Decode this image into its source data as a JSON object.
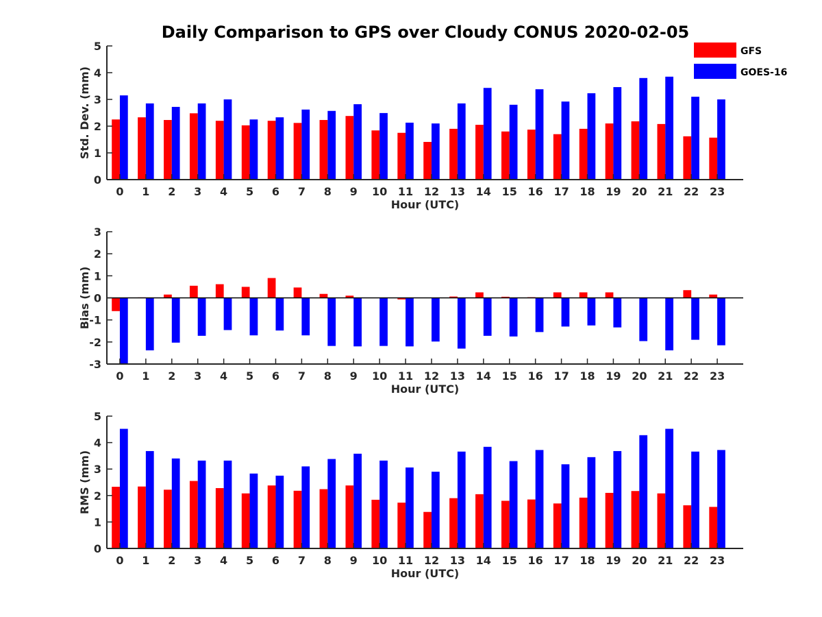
{
  "title": "Daily Comparison to GPS over Cloudy CONUS 2020-02-05",
  "colors": {
    "GFS": "#ff0000",
    "GOES-16": "#0000ff",
    "axis": "#262626"
  },
  "legend": {
    "placement": "top-right",
    "entries": [
      "GFS",
      "GOES-16"
    ]
  },
  "chart_data": [
    {
      "type": "bar",
      "ylabel": "Std. Dev. (mm)",
      "xlabel": "Hour (UTC)",
      "ylim": [
        0,
        5
      ],
      "yticks": [
        "0",
        "1",
        "2",
        "3",
        "4",
        "5"
      ],
      "categories": [
        "0",
        "1",
        "2",
        "3",
        "4",
        "5",
        "6",
        "7",
        "8",
        "9",
        "10",
        "11",
        "12",
        "13",
        "14",
        "15",
        "16",
        "17",
        "18",
        "19",
        "20",
        "21",
        "22",
        "23"
      ],
      "series": [
        {
          "name": "GFS",
          "values": [
            2.25,
            2.33,
            2.23,
            2.48,
            2.2,
            2.03,
            2.2,
            2.12,
            2.23,
            2.38,
            1.84,
            1.75,
            1.41,
            1.9,
            2.05,
            1.8,
            1.87,
            1.7,
            1.9,
            2.1,
            2.18,
            2.08,
            1.62,
            1.57
          ]
        },
        {
          "name": "GOES-16",
          "values": [
            3.15,
            2.85,
            2.72,
            2.85,
            3.0,
            2.25,
            2.33,
            2.62,
            2.57,
            2.82,
            2.49,
            2.13,
            2.1,
            2.85,
            3.43,
            2.8,
            3.38,
            2.92,
            3.23,
            3.46,
            3.8,
            3.85,
            3.1,
            3.0
          ]
        }
      ]
    },
    {
      "type": "bar",
      "ylabel": "Bias (mm)",
      "xlabel": "Hour (UTC)",
      "ylim": [
        -3,
        3
      ],
      "yticks": [
        "-3",
        "-2",
        "-1",
        "0",
        "1",
        "2",
        "3"
      ],
      "categories": [
        "0",
        "1",
        "2",
        "3",
        "4",
        "5",
        "6",
        "7",
        "8",
        "9",
        "10",
        "11",
        "12",
        "13",
        "14",
        "15",
        "16",
        "17",
        "18",
        "19",
        "20",
        "21",
        "22",
        "23"
      ],
      "series": [
        {
          "name": "GFS",
          "values": [
            -0.6,
            0.02,
            0.15,
            0.55,
            0.62,
            0.5,
            0.9,
            0.47,
            0.18,
            0.1,
            0.0,
            -0.07,
            0.0,
            0.06,
            0.25,
            0.05,
            0.03,
            0.25,
            0.25,
            0.25,
            0.0,
            0.0,
            0.35,
            0.15
          ]
        },
        {
          "name": "GOES-16",
          "values": [
            -3.0,
            -2.38,
            -2.03,
            -1.72,
            -1.46,
            -1.7,
            -1.48,
            -1.7,
            -2.18,
            -2.2,
            -2.18,
            -2.2,
            -1.98,
            -2.3,
            -1.72,
            -1.75,
            -1.55,
            -1.3,
            -1.25,
            -1.34,
            -1.96,
            -2.38,
            -1.9,
            -2.15
          ]
        }
      ]
    },
    {
      "type": "bar",
      "ylabel": "RMS (mm)",
      "xlabel": "Hour (UTC)",
      "ylim": [
        0,
        5
      ],
      "yticks": [
        "0",
        "1",
        "2",
        "3",
        "4",
        "5"
      ],
      "categories": [
        "0",
        "1",
        "2",
        "3",
        "4",
        "5",
        "6",
        "7",
        "8",
        "9",
        "10",
        "11",
        "12",
        "13",
        "14",
        "15",
        "16",
        "17",
        "18",
        "19",
        "20",
        "21",
        "22",
        "23"
      ],
      "series": [
        {
          "name": "GFS",
          "values": [
            2.33,
            2.34,
            2.22,
            2.55,
            2.28,
            2.08,
            2.38,
            2.18,
            2.24,
            2.38,
            1.84,
            1.73,
            1.38,
            1.9,
            2.05,
            1.8,
            1.85,
            1.7,
            1.92,
            2.1,
            2.17,
            2.08,
            1.63,
            1.57
          ]
        },
        {
          "name": "GOES-16",
          "values": [
            4.52,
            3.68,
            3.4,
            3.32,
            3.32,
            2.83,
            2.75,
            3.1,
            3.38,
            3.58,
            3.32,
            3.06,
            2.9,
            3.66,
            3.84,
            3.3,
            3.72,
            3.18,
            3.45,
            3.68,
            4.28,
            4.52,
            3.66,
            3.72
          ]
        }
      ]
    }
  ]
}
